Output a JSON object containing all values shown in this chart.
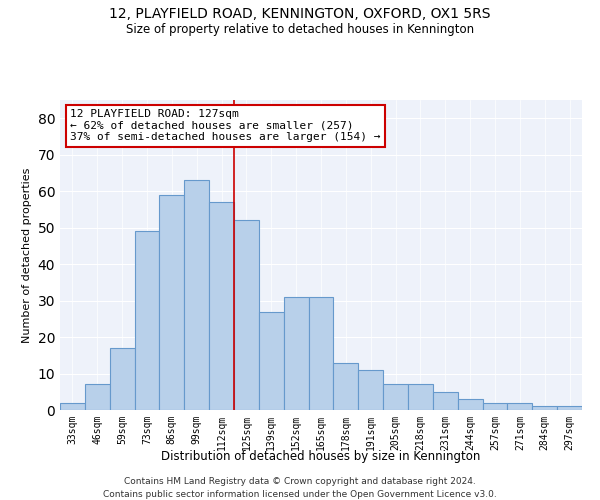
{
  "title1": "12, PLAYFIELD ROAD, KENNINGTON, OXFORD, OX1 5RS",
  "title2": "Size of property relative to detached houses in Kennington",
  "xlabel": "Distribution of detached houses by size in Kennington",
  "ylabel": "Number of detached properties",
  "categories": [
    "33sqm",
    "46sqm",
    "59sqm",
    "73sqm",
    "86sqm",
    "99sqm",
    "112sqm",
    "125sqm",
    "139sqm",
    "152sqm",
    "165sqm",
    "178sqm",
    "191sqm",
    "205sqm",
    "218sqm",
    "231sqm",
    "244sqm",
    "257sqm",
    "271sqm",
    "284sqm",
    "297sqm"
  ],
  "values": [
    2,
    7,
    17,
    49,
    59,
    63,
    57,
    52,
    27,
    31,
    31,
    13,
    11,
    7,
    7,
    5,
    3,
    2,
    2,
    1,
    1
  ],
  "bar_color": "#b8d0ea",
  "bar_edge_color": "#6699cc",
  "annotation_title": "12 PLAYFIELD ROAD: 127sqm",
  "annotation_line1": "← 62% of detached houses are smaller (257)",
  "annotation_line2": "37% of semi-detached houses are larger (154) →",
  "annotation_box_color": "#ffffff",
  "annotation_box_edge": "#cc0000",
  "red_line_x": 7.5,
  "ylim": [
    0,
    85
  ],
  "yticks": [
    0,
    10,
    20,
    30,
    40,
    50,
    60,
    70,
    80
  ],
  "background_color": "#eef2fa",
  "footer1": "Contains HM Land Registry data © Crown copyright and database right 2024.",
  "footer2": "Contains public sector information licensed under the Open Government Licence v3.0."
}
